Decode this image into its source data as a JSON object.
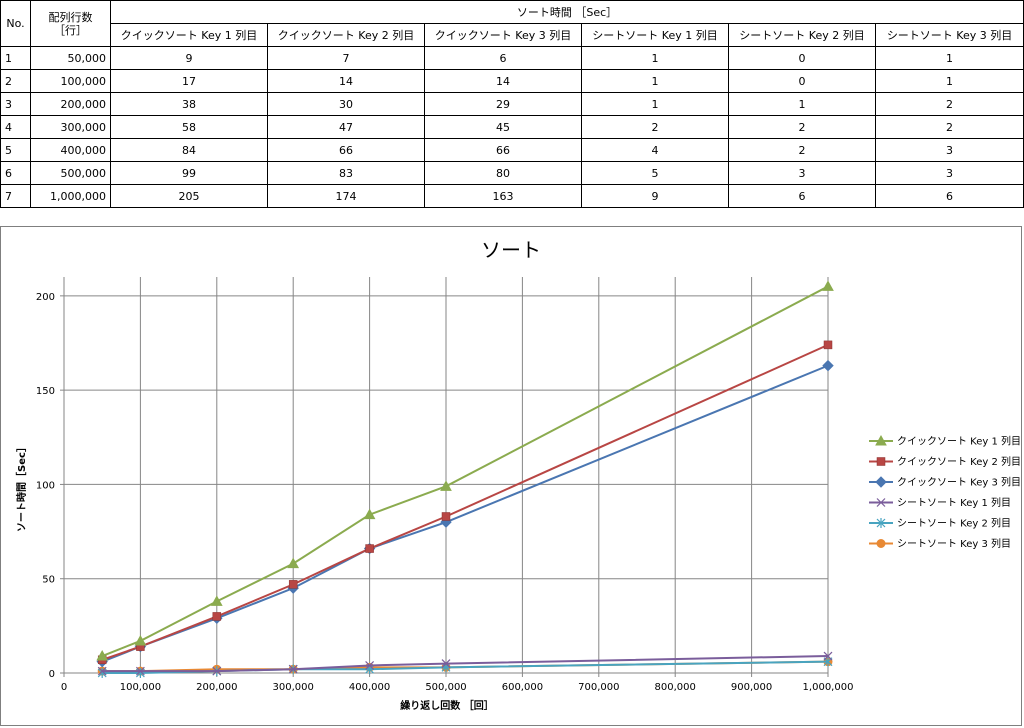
{
  "table": {
    "header": {
      "no": "No.",
      "rows_line1": "配列行数",
      "rows_line2": "［行］",
      "sort_time": "ソート時間 ［Sec］",
      "columns": [
        "クイックソート Key 1 列目",
        "クイックソート Key 2 列目",
        "クイックソート Key 3 列目",
        "シートソート Key 1 列目",
        "シートソート Key 2 列目",
        "シートソート Key 3 列目"
      ]
    },
    "rows": [
      {
        "no": "1",
        "rows": "50,000",
        "values": [
          "9",
          "7",
          "6",
          "1",
          "0",
          "1"
        ]
      },
      {
        "no": "2",
        "rows": "100,000",
        "values": [
          "17",
          "14",
          "14",
          "1",
          "0",
          "1"
        ]
      },
      {
        "no": "3",
        "rows": "200,000",
        "values": [
          "38",
          "30",
          "29",
          "1",
          "1",
          "2"
        ]
      },
      {
        "no": "4",
        "rows": "300,000",
        "values": [
          "58",
          "47",
          "45",
          "2",
          "2",
          "2"
        ]
      },
      {
        "no": "5",
        "rows": "400,000",
        "values": [
          "84",
          "66",
          "66",
          "4",
          "2",
          "3"
        ]
      },
      {
        "no": "6",
        "rows": "500,000",
        "values": [
          "99",
          "83",
          "80",
          "5",
          "3",
          "3"
        ]
      },
      {
        "no": "7",
        "rows": "1,000,000",
        "values": [
          "205",
          "174",
          "163",
          "9",
          "6",
          "6"
        ]
      }
    ]
  },
  "chart_data": {
    "type": "line",
    "title": "ソート",
    "xlabel": "繰り返し回数 ［回］",
    "ylabel": "ソート時間［Sec］",
    "x": [
      50000,
      100000,
      200000,
      300000,
      400000,
      500000,
      1000000
    ],
    "xlim": [
      0,
      1000000
    ],
    "ylim": [
      0,
      210
    ],
    "xticks": [
      0,
      100000,
      200000,
      300000,
      400000,
      500000,
      600000,
      700000,
      800000,
      900000,
      1000000
    ],
    "xtick_labels": [
      "0",
      "100,000",
      "200,000",
      "300,000",
      "400,000",
      "500,000",
      "600,000",
      "700,000",
      "800,000",
      "900,000",
      "1,000,000"
    ],
    "yticks": [
      0,
      50,
      100,
      150,
      200
    ],
    "ytick_labels": [
      "0",
      "50",
      "100",
      "150",
      "200"
    ],
    "grid": true,
    "legend_position": "right",
    "series": [
      {
        "name": "クイックソート Key 1 列目",
        "values": [
          9,
          17,
          38,
          58,
          84,
          99,
          205
        ],
        "color": "#8bab4f",
        "marker": "triangle"
      },
      {
        "name": "クイックソート Key 2 列目",
        "values": [
          7,
          14,
          30,
          47,
          66,
          83,
          174
        ],
        "color": "#b84644",
        "marker": "square"
      },
      {
        "name": "クイックソート Key 3 列目",
        "values": [
          6,
          14,
          29,
          45,
          66,
          80,
          163
        ],
        "color": "#4a76b1",
        "marker": "diamond"
      },
      {
        "name": "シートソート Key 1 列目",
        "values": [
          1,
          1,
          1,
          2,
          4,
          5,
          9
        ],
        "color": "#7a5d9b",
        "marker": "x"
      },
      {
        "name": "シートソート Key 2 列目",
        "values": [
          0,
          0,
          1,
          2,
          2,
          3,
          6
        ],
        "color": "#48a4c0",
        "marker": "asterisk"
      },
      {
        "name": "シートソート Key 3 列目",
        "values": [
          1,
          1,
          2,
          2,
          3,
          3,
          6
        ],
        "color": "#e88934",
        "marker": "circle"
      }
    ]
  }
}
